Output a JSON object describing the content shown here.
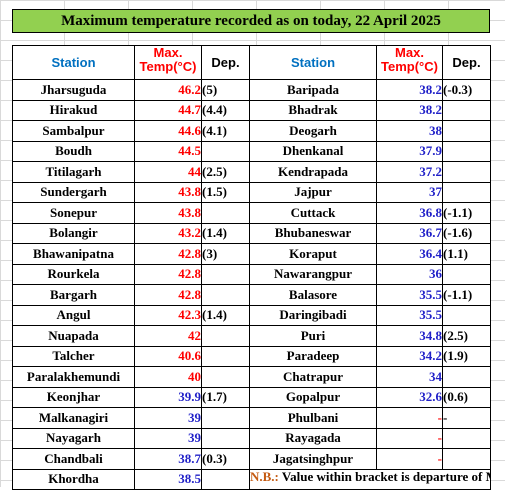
{
  "title": "Maximum temperature recorded as on today, 22 April 2025",
  "headers": {
    "station": "Station",
    "max_line1": "Max.",
    "max_line2": "Temp(°C)",
    "dep": "Dep."
  },
  "left": [
    {
      "station": "Jharsuguda",
      "temp": "46.2",
      "dep": "(5)",
      "color": "red"
    },
    {
      "station": "Hirakud",
      "temp": "44.7",
      "dep": "(4.4)",
      "color": "red"
    },
    {
      "station": "Sambalpur",
      "temp": "44.6",
      "dep": "(4.1)",
      "color": "red"
    },
    {
      "station": "Boudh",
      "temp": "44.5",
      "dep": "",
      "color": "red"
    },
    {
      "station": "Titilagarh",
      "temp": "44",
      "dep": "(2.5)",
      "color": "red"
    },
    {
      "station": "Sundergarh",
      "temp": "43.8",
      "dep": "(1.5)",
      "color": "red"
    },
    {
      "station": "Sonepur",
      "temp": "43.8",
      "dep": "",
      "color": "red"
    },
    {
      "station": "Bolangir",
      "temp": "43.2",
      "dep": "(1.4)",
      "color": "red"
    },
    {
      "station": "Bhawanipatna",
      "temp": "42.8",
      "dep": "(3)",
      "color": "red"
    },
    {
      "station": "Rourkela",
      "temp": "42.8",
      "dep": "",
      "color": "red"
    },
    {
      "station": "Bargarh",
      "temp": "42.8",
      "dep": "",
      "color": "red"
    },
    {
      "station": "Angul",
      "temp": "42.3",
      "dep": "(1.4)",
      "color": "red"
    },
    {
      "station": "Nuapada",
      "temp": "42",
      "dep": "",
      "color": "red"
    },
    {
      "station": "Talcher",
      "temp": "40.6",
      "dep": "",
      "color": "red"
    },
    {
      "station": "Paralakhemundi",
      "temp": "40",
      "dep": "",
      "color": "red"
    },
    {
      "station": "Keonjhar",
      "temp": "39.9",
      "dep": "(1.7)",
      "color": "blue"
    },
    {
      "station": "Malkanagiri",
      "temp": "39",
      "dep": "",
      "color": "blue"
    },
    {
      "station": "Nayagarh",
      "temp": "39",
      "dep": "",
      "color": "blue"
    },
    {
      "station": "Chandbali",
      "temp": "38.7",
      "dep": "(0.3)",
      "color": "blue"
    },
    {
      "station": "Khordha",
      "temp": "38.5",
      "dep": "",
      "color": "blue"
    }
  ],
  "right": [
    {
      "station": "Baripada",
      "temp": "38.2",
      "dep": "(-0.3)",
      "color": "blue"
    },
    {
      "station": "Bhadrak",
      "temp": "38.2",
      "dep": "",
      "color": "blue"
    },
    {
      "station": "Deogarh",
      "temp": "38",
      "dep": "",
      "color": "blue"
    },
    {
      "station": "Dhenkanal",
      "temp": "37.9",
      "dep": "",
      "color": "blue"
    },
    {
      "station": "Kendrapada",
      "temp": "37.2",
      "dep": "",
      "color": "blue"
    },
    {
      "station": "Jajpur",
      "temp": "37",
      "dep": "",
      "color": "blue"
    },
    {
      "station": "Cuttack",
      "temp": "36.8",
      "dep": "(-1.1)",
      "color": "blue"
    },
    {
      "station": "Bhubaneswar",
      "temp": "36.7",
      "dep": "(-1.6)",
      "color": "blue"
    },
    {
      "station": "Koraput",
      "temp": "36.4",
      "dep": "(1.1)",
      "color": "blue"
    },
    {
      "station": "Nawarangpur",
      "temp": "36",
      "dep": "",
      "color": "blue"
    },
    {
      "station": "Balasore",
      "temp": "35.5",
      "dep": "(-1.1)",
      "color": "blue"
    },
    {
      "station": "Daringibadi",
      "temp": "35.5",
      "dep": "",
      "color": "blue"
    },
    {
      "station": "Puri",
      "temp": "34.8",
      "dep": "(2.5)",
      "color": "blue"
    },
    {
      "station": "Paradeep",
      "temp": "34.2",
      "dep": "(1.9)",
      "color": "blue"
    },
    {
      "station": "Chatrapur",
      "temp": "34",
      "dep": "",
      "color": "blue"
    },
    {
      "station": "Gopalpur",
      "temp": "32.6",
      "dep": "(0.6)",
      "color": "blue"
    },
    {
      "station": "Phulbani",
      "temp": "-",
      "dep": "-",
      "color": "red"
    },
    {
      "station": "Rayagada",
      "temp": "-",
      "dep": "",
      "color": "red"
    },
    {
      "station": "Jagatsinghpur",
      "temp": "-",
      "dep": "",
      "color": "red"
    }
  ],
  "note": {
    "label": "N.B.:",
    "text": " Value within bracket is departure of Max.T from normal for available stations."
  },
  "colors": {
    "title_bg": "#92d050",
    "header_blue": "#0070c0",
    "high": "#ff0000",
    "normal": "#1f1fc8",
    "note_label": "#c55a11"
  }
}
